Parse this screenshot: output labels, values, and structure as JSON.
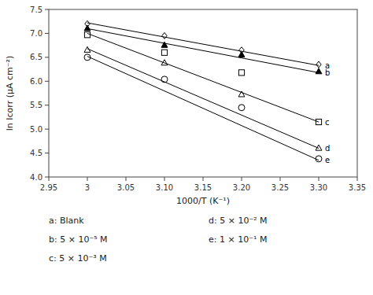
{
  "chart_data": {
    "type": "scatter",
    "x_label": "1000/T (K⁻¹)",
    "y_label": "ln Icorr (μA cm⁻²)",
    "color": "black",
    "grid": false,
    "xlim": [
      2.95,
      3.35
    ],
    "ylim": [
      4.0,
      7.5
    ],
    "xticks": [
      2.95,
      3,
      3.05,
      {
        "value": 3.1,
        "label": "3.10"
      },
      3.15,
      {
        "value": 3.2,
        "label": "3.20"
      },
      3.25,
      {
        "value": 3.3,
        "label": "3.30"
      },
      3.35
    ],
    "yticks": [
      {
        "value": 4.0,
        "label": "4.0"
      },
      4.5,
      {
        "value": 5.0,
        "label": "5.0"
      },
      5.5,
      {
        "value": 6.0,
        "label": "6.0"
      },
      6.5,
      {
        "value": 7.0,
        "label": "7.0"
      },
      7.5
    ],
    "series": [
      {
        "name": "a",
        "marker": "diamond-open",
        "x": [
          3.0,
          3.1,
          3.2,
          3.3
        ],
        "values": [
          7.2,
          6.95,
          6.65,
          6.35
        ],
        "fit": {
          "x": [
            3.0,
            3.3
          ],
          "values": [
            7.22,
            6.33
          ]
        }
      },
      {
        "name": "b",
        "marker": "triangle-filled",
        "x": [
          3.0,
          3.1,
          3.2,
          3.3
        ],
        "values": [
          7.1,
          6.75,
          6.55,
          6.2
        ],
        "fit": {
          "x": [
            3.0,
            3.3
          ],
          "values": [
            7.1,
            6.18
          ]
        }
      },
      {
        "name": "c",
        "marker": "square-open",
        "x": [
          3.0,
          3.1,
          3.2,
          3.3
        ],
        "values": [
          6.97,
          6.6,
          6.18,
          5.15
        ],
        "fit": {
          "x": [
            3.0,
            3.3
          ],
          "values": [
            7.0,
            5.15
          ]
        }
      },
      {
        "name": "d",
        "marker": "triangle-open",
        "x": [
          3.0,
          3.1,
          3.2,
          3.3
        ],
        "values": [
          6.65,
          6.38,
          5.72,
          4.6
        ],
        "fit": {
          "x": [
            3.0,
            3.3
          ],
          "values": [
            6.68,
            4.6
          ]
        }
      },
      {
        "name": "e",
        "marker": "circle-open",
        "x": [
          3.0,
          3.1,
          3.2,
          3.3
        ],
        "values": [
          6.5,
          6.04,
          5.45,
          4.38
        ],
        "fit": {
          "x": [
            3.0,
            3.3
          ],
          "values": [
            6.52,
            4.35
          ]
        }
      }
    ],
    "annotations": [
      "a: Blank",
      "b: 5 × 10⁻⁵ M",
      "c: 5 × 10⁻³ M",
      "d: 5 × 10⁻² M",
      "e: 1 × 10⁻¹ M"
    ]
  }
}
